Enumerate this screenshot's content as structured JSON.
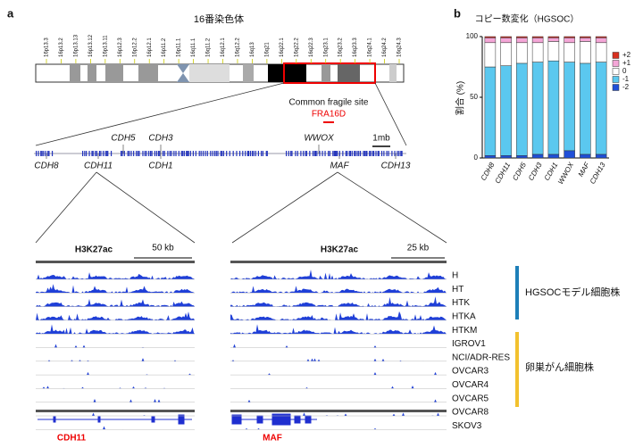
{
  "panel_labels": [
    "a",
    "b"
  ],
  "panel_a": {
    "chromosome": {
      "title": "16番染色体",
      "bands": [
        "16p13.3",
        "16p13.2",
        "16p13.13",
        "16p13.12",
        "16p13.11",
        "16p12.3",
        "16p12.2",
        "16p12.1",
        "16p11.2",
        "16p11.1",
        "16q11.1",
        "16q11.2",
        "16q12.1",
        "16q12.2",
        "16q13",
        "16q21",
        "16q22.1",
        "16q22.2",
        "16q22.3",
        "16q23.1",
        "16q23.2",
        "16q23.3",
        "16q24.1",
        "16q24.2",
        "16q24.3"
      ]
    },
    "fragile_site": {
      "label": "Common fragile site",
      "name": "FRA16D"
    },
    "genes": [
      "CDH8",
      "CDH11",
      "CDH5",
      "CDH3",
      "CDH1",
      "WWOX",
      "MAF",
      "CDH13"
    ],
    "scale": "1mb",
    "tracks": {
      "mark": "H3K27ac",
      "scales": [
        "50 kb",
        "25 kb"
      ],
      "cell_lines": [
        "H",
        "HT",
        "HTK",
        "HTKA",
        "HTKM",
        "IGROV1",
        "NCI/ADR-RES",
        "OVCAR3",
        "OVCAR4",
        "OVCAR5",
        "OVCAR8",
        "SKOV3"
      ],
      "groups": [
        "HGSOCモデル細胞株",
        "卵巣がん細胞株"
      ],
      "genes": [
        "CDH11",
        "MAF"
      ]
    }
  },
  "chart_data": {
    "type": "stacked_bar",
    "title": "コピー数変化（HGSOC）",
    "y_label": "割合 (%)",
    "categories": [
      "CDH8",
      "CDH11",
      "CDH5",
      "CDH3",
      "CDH1",
      "WWOX",
      "MAF",
      "CDH13"
    ],
    "series": [
      {
        "name": "-2",
        "color": "#1f4fd8",
        "values": [
          2,
          2,
          2,
          3,
          3,
          6,
          3,
          3
        ]
      },
      {
        "name": "-1",
        "color": "#5bc8ef",
        "values": [
          73,
          74,
          76,
          76,
          77,
          73,
          75,
          76
        ]
      },
      {
        "name": "0",
        "color": "#ffffff",
        "values": [
          20,
          19,
          17,
          16,
          16,
          16,
          18,
          16
        ]
      },
      {
        "name": "+1",
        "color": "#f4a6d7",
        "values": [
          4,
          4,
          4,
          4,
          3,
          4,
          3,
          4
        ]
      },
      {
        "name": "+2",
        "color": "#d7301f",
        "values": [
          1,
          1,
          1,
          1,
          1,
          1,
          1,
          1
        ]
      }
    ],
    "ylim": [
      0,
      100
    ],
    "yticks": [
      0,
      50,
      100
    ]
  }
}
